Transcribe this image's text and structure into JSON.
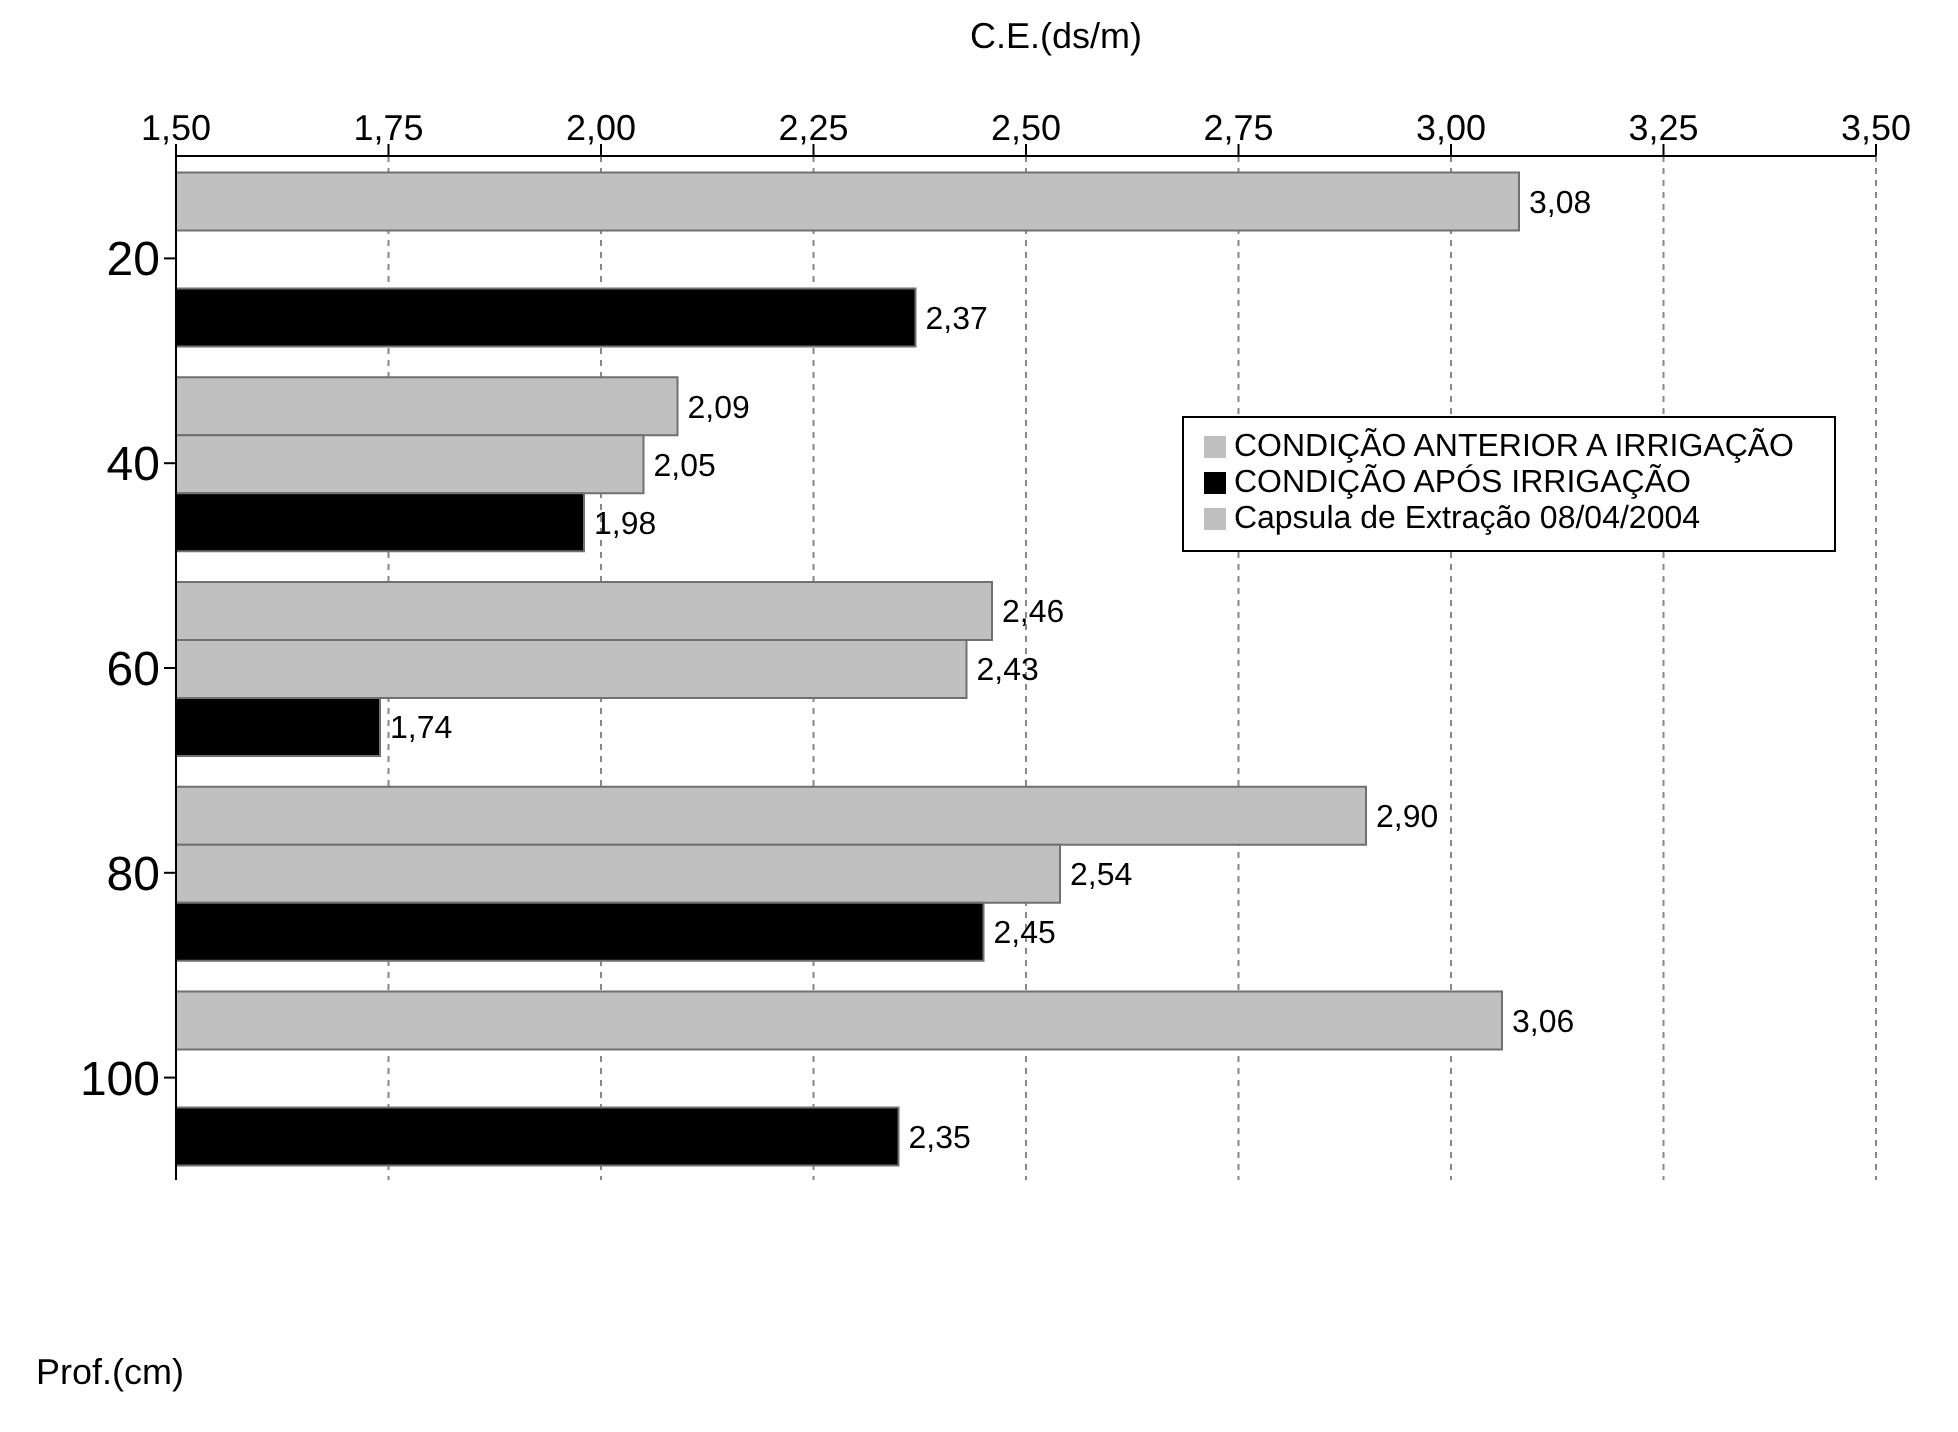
{
  "chart_data": {
    "type": "bar",
    "orientation": "horizontal",
    "xlabel": "C.E.(ds/m)",
    "ylabel": "Prof.(cm)",
    "categories": [
      "20",
      "40",
      "60",
      "80",
      "100"
    ],
    "series": [
      {
        "name": "CONDIÇÃO ANTERIOR A IRRIGAÇÃO",
        "color": "#c0c0c0",
        "values": [
          3.08,
          2.09,
          2.46,
          2.9,
          3.06
        ],
        "value_labels": [
          "3,08",
          "2,09",
          "2,46",
          "2,90",
          "3,06"
        ]
      },
      {
        "name": "Capsula de Extração 08/04/2004",
        "color": "#c0c0c0",
        "values": [
          null,
          2.05,
          2.43,
          2.54,
          null
        ],
        "value_labels": [
          null,
          "2,05",
          "2,43",
          "2,54",
          null
        ]
      },
      {
        "name": "CONDIÇÃO APÓS IRRIGAÇÃO",
        "color": "#000000",
        "values": [
          2.37,
          1.98,
          1.74,
          2.45,
          2.35
        ],
        "value_labels": [
          "2,37",
          "1,98",
          "1,74",
          "2,45",
          "2,35"
        ]
      }
    ],
    "xlim": [
      1.5,
      3.5
    ],
    "xticks": [
      {
        "value": 1.5,
        "label": "1,50"
      },
      {
        "value": 1.75,
        "label": "1,75"
      },
      {
        "value": 2.0,
        "label": "2,00"
      },
      {
        "value": 2.25,
        "label": "2,25"
      },
      {
        "value": 2.5,
        "label": "2,50"
      },
      {
        "value": 2.75,
        "label": "2,75"
      },
      {
        "value": 3.0,
        "label": "3,00"
      },
      {
        "value": 3.25,
        "label": "3,25"
      },
      {
        "value": 3.5,
        "label": "3,50"
      }
    ],
    "grid": "x",
    "legend": "right"
  }
}
